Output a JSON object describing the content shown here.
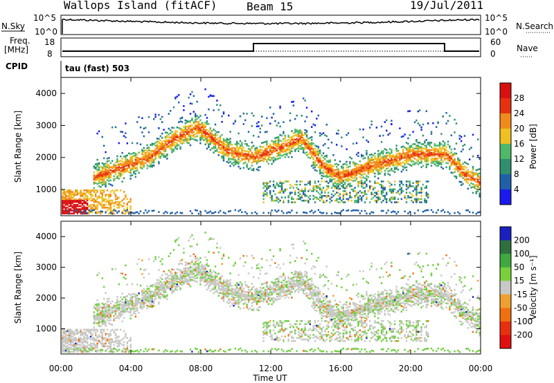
{
  "header": {
    "station": "Wallops Island (fitACF)",
    "beam": "Beam 15",
    "date": "19/Jul/2011"
  },
  "panels": {
    "sky_label": "N.Sky",
    "search_label": "N.Search",
    "freq_label": "Freq.",
    "freq_unit": "[MHz]",
    "nave_label": "Nave",
    "cpid_label": "CPID",
    "cpid_value": "tau (fast) 503",
    "sky_ticks": [
      "10^5",
      "10^0"
    ],
    "freq_ticks": [
      "18",
      "8"
    ],
    "nave_ticks": [
      "60",
      "0"
    ]
  },
  "chart_data": [
    {
      "type": "heatmap",
      "title": "Power",
      "ylabel": "Slant Range [km]",
      "xlabel": "",
      "ylim": [
        180,
        4500
      ],
      "yticks": [
        "1000",
        "2000",
        "3000",
        "4000"
      ],
      "colorbar_label": "Power [dB]",
      "colorbar_ticks": [
        "4",
        "8",
        "12",
        "16",
        "20",
        "24",
        "28"
      ],
      "colorbar_colors": [
        "#1a1af0",
        "#2060a8",
        "#2f8f6e",
        "#4fb86a",
        "#f0c020",
        "#f08a1a",
        "#e83010",
        "#d81010"
      ],
      "echo_bands": [
        {
          "name": "lower",
          "start_hr": 0.0,
          "ranges_km": [
            600,
            350
          ]
        },
        {
          "name": "main",
          "start_hr": 1.8,
          "ranges_km": [
            1000,
            1500,
            1800,
            2100,
            2400,
            2600,
            2800,
            2200,
            2000,
            1900
          ]
        }
      ]
    },
    {
      "type": "heatmap",
      "title": "Velocity",
      "ylabel": "Slant Range [km]",
      "xlabel": "Time UT",
      "ylim": [
        180,
        4500
      ],
      "yticks": [
        "1000",
        "2000",
        "3000",
        "4000"
      ],
      "xticks": [
        "00:00",
        "04:00",
        "08:00",
        "12:00",
        "16:00",
        "20:00",
        "00:00"
      ],
      "colorbar_label": "Velocity [m s⁻¹]",
      "colorbar_ticks": [
        "200",
        "100",
        "50",
        "15",
        "-15",
        "-50",
        "-100",
        "-200"
      ],
      "colorbar_colors": [
        "#1a20c0",
        "#2f7040",
        "#3fa83f",
        "#7ad03a",
        "#c8c8c4",
        "#f0a030",
        "#f07010",
        "#e83010",
        "#e01010"
      ]
    }
  ],
  "colors": {
    "grey_echo": "#c8c8c4",
    "green_echo": "#6fcf3f",
    "axis": "#000000"
  }
}
